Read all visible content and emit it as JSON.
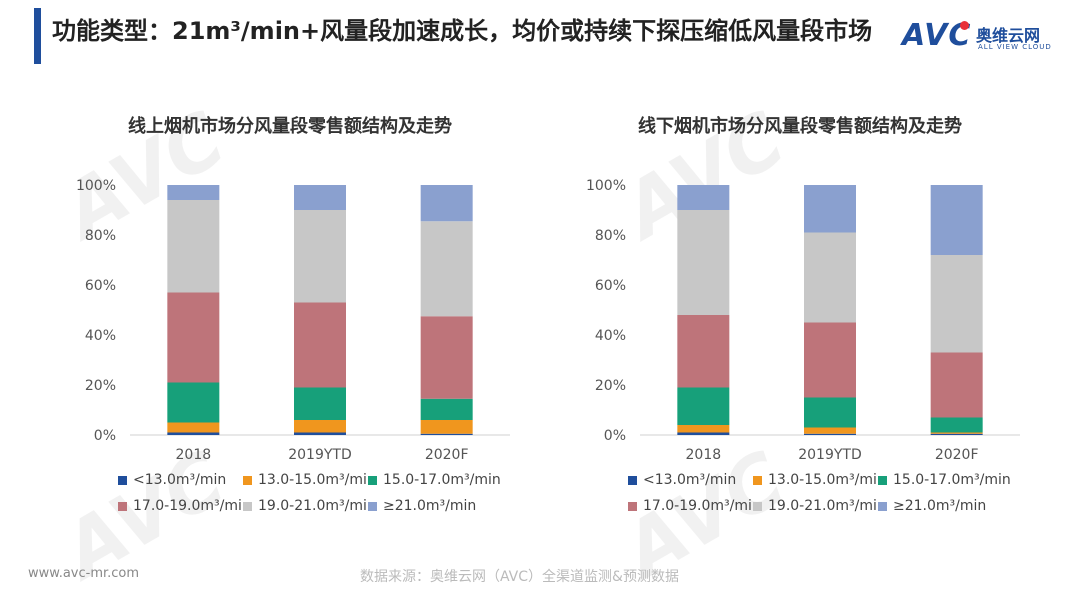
{
  "header": {
    "title": "功能类型：21m³/min+风量段加速成长，均价或持续下探压缩低风量段市场",
    "accent_color": "#1f4e9c"
  },
  "logo": {
    "mark": "AVC",
    "name_cn": "奥维云网",
    "name_en": "ALL VIEW CLOUD"
  },
  "footer": {
    "url": "www.avc-mr.com",
    "source": "数据来源：奥维云网（AVC）全渠道监测&预测数据"
  },
  "colors": {
    "s1": "#1f4e9c",
    "s2": "#f0961e",
    "s3": "#17a07a",
    "s4": "#be747a",
    "s5": "#c7c7c7",
    "s6": "#8aa0cf"
  },
  "chart_data": [
    {
      "type": "bar",
      "stacked": true,
      "title": "线上烟机市场分风量段零售额结构及走势",
      "categories": [
        "2018",
        "2019YTD",
        "2020F"
      ],
      "ylim": [
        0,
        100
      ],
      "yticks": [
        "0%",
        "20%",
        "40%",
        "60%",
        "80%",
        "100%"
      ],
      "legend_position": "bottom",
      "series": [
        {
          "name": "<13.0m³/min",
          "values": [
            1,
            1,
            0.5
          ]
        },
        {
          "name": "13.0-15.0m³/min",
          "values": [
            4,
            5,
            5.5
          ]
        },
        {
          "name": "15.0-17.0m³/min",
          "values": [
            16,
            13,
            8.5
          ]
        },
        {
          "name": "17.0-19.0m³/min",
          "values": [
            36,
            34,
            33
          ]
        },
        {
          "name": "19.0-21.0m³/min",
          "values": [
            37,
            37,
            38
          ]
        },
        {
          "name": "≥21.0m³/min",
          "values": [
            6,
            10,
            14.5
          ]
        }
      ]
    },
    {
      "type": "bar",
      "stacked": true,
      "title": "线下烟机市场分风量段零售额结构及走势",
      "categories": [
        "2018",
        "2019YTD",
        "2020F"
      ],
      "ylim": [
        0,
        100
      ],
      "yticks": [
        "0%",
        "20%",
        "40%",
        "60%",
        "80%",
        "100%"
      ],
      "legend_position": "bottom",
      "series": [
        {
          "name": "<13.0m³/min",
          "values": [
            1,
            0.5,
            0.5
          ]
        },
        {
          "name": "13.0-15.0m³/min",
          "values": [
            3,
            2.5,
            0.5
          ]
        },
        {
          "name": "15.0-17.0m³/min",
          "values": [
            15,
            12,
            6
          ]
        },
        {
          "name": "17.0-19.0m³/min",
          "values": [
            29,
            30,
            26
          ]
        },
        {
          "name": "19.0-21.0m³/min",
          "values": [
            42,
            36,
            39
          ]
        },
        {
          "name": "≥21.0m³/min",
          "values": [
            10,
            19,
            28
          ]
        }
      ]
    }
  ]
}
